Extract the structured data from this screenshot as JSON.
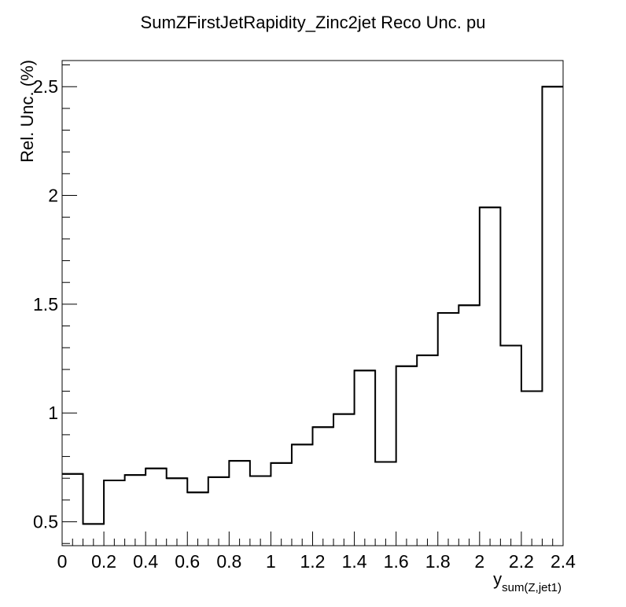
{
  "chart_data": {
    "type": "histogram",
    "title": "SumZFirstJetRapidity_Zinc2jet Reco Unc. pu",
    "xlabel": "y",
    "xlabel_subscript": "sum(Z,jet1)",
    "ylabel": "Rel. Unc. (%)",
    "xlim": [
      0,
      2.4
    ],
    "ylim": [
      0.39,
      2.62
    ],
    "grid": false,
    "legend": "none",
    "bin_edges": [
      0,
      0.1,
      0.2,
      0.3,
      0.4,
      0.5,
      0.6,
      0.7,
      0.8,
      0.9,
      1.0,
      1.1,
      1.2,
      1.3,
      1.4,
      1.5,
      1.6,
      1.7,
      1.8,
      1.9,
      2.0,
      2.1,
      2.2,
      2.3,
      2.4
    ],
    "values": [
      0.72,
      0.49,
      0.69,
      0.715,
      0.745,
      0.7,
      0.635,
      0.705,
      0.78,
      0.71,
      0.77,
      0.855,
      0.935,
      0.995,
      1.195,
      0.775,
      1.215,
      1.265,
      1.46,
      1.495,
      1.945,
      1.31,
      1.1,
      2.5
    ],
    "x_ticks": [
      0,
      0.2,
      0.4,
      0.6,
      0.8,
      1,
      1.2,
      1.4,
      1.6,
      1.8,
      2,
      2.2,
      2.4
    ],
    "x_tick_labels": [
      "0",
      "0.2",
      "0.4",
      "0.6",
      "0.8",
      "1",
      "1.2",
      "1.4",
      "1.6",
      "1.8",
      "2",
      "2.2",
      "2.4"
    ],
    "y_ticks": [
      0.5,
      1,
      1.5,
      2,
      2.5
    ],
    "y_tick_labels": [
      "0.5",
      "1",
      "1.5",
      "2",
      "2.5"
    ],
    "line_color": "#000000"
  }
}
